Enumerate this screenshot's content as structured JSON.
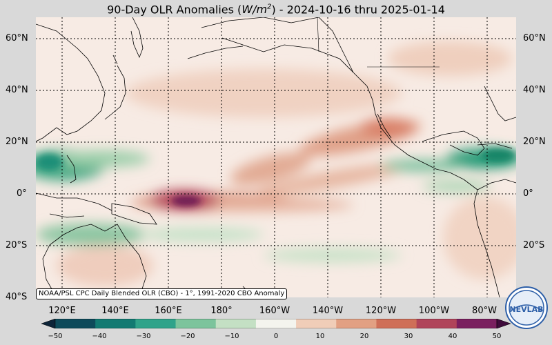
{
  "title": {
    "prefix": "90-Day OLR Anomalies (",
    "unit_base": "W/m",
    "unit_exp": "2",
    "suffix": ") - 2024-10-16 thru 2025-01-14"
  },
  "credit": "NOAA/PSL CPC Daily Blended OLR (CBO) - 1°, 1991-2020 CBO Anomaly",
  "lat_labels": [
    "60°N",
    "40°N",
    "20°N",
    "0°",
    "20°S",
    "40°S"
  ],
  "lon_labels": [
    "120°E",
    "140°E",
    "160°E",
    "180°",
    "160°W",
    "140°W",
    "120°W",
    "100°W",
    "80°W"
  ],
  "colorbar": {
    "ticks": [
      "−50",
      "−40",
      "−30",
      "−20",
      "−10",
      "0",
      "10",
      "20",
      "30",
      "40",
      "50"
    ],
    "min": -50,
    "max": 50,
    "colors": [
      "#0d2438",
      "#0e4a5a",
      "#127a72",
      "#2fa38a",
      "#7cc49c",
      "#c4e0c4",
      "#f4f4ee",
      "#f0cdb8",
      "#e2a083",
      "#cf6f58",
      "#b0445a",
      "#7a1f5f",
      "#3f0b3b"
    ]
  },
  "logo": {
    "text": "NEVLAB",
    "colors": [
      "#2d5fa8",
      "#ffffff"
    ]
  },
  "anomaly_colors": {
    "negative": "#2a9d79",
    "positive": "#c0504d",
    "strong_positive": "#7a1f5f"
  }
}
